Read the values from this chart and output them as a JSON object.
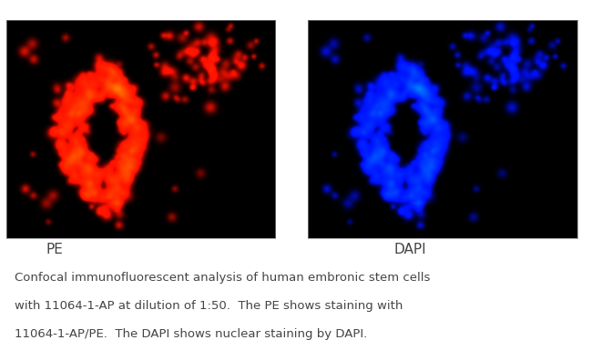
{
  "background_color": "#ffffff",
  "panel_bg": "#000000",
  "left_label": "PE",
  "right_label": "DAPI",
  "caption_line1": "Confocal immunofluorescent analysis of human embronic stem cells",
  "caption_line2": "with 11064-1-AP at dilution of 1:50.  The PE shows staining with",
  "caption_line3": "11064-1-AP/PE.  The DAPI shows nuclear staining by DAPI.",
  "caption_color": "#444444",
  "caption_fontsize": 9.5,
  "label_fontsize": 11,
  "label_color": "#444444",
  "cell_color_left": "#cc0000",
  "cell_color_right": "#0000cc",
  "seed": 42,
  "n_cells_main": 550,
  "n_cells_secondary": 80,
  "n_cells_scattered": 30,
  "figsize": [
    6.5,
    3.74
  ]
}
